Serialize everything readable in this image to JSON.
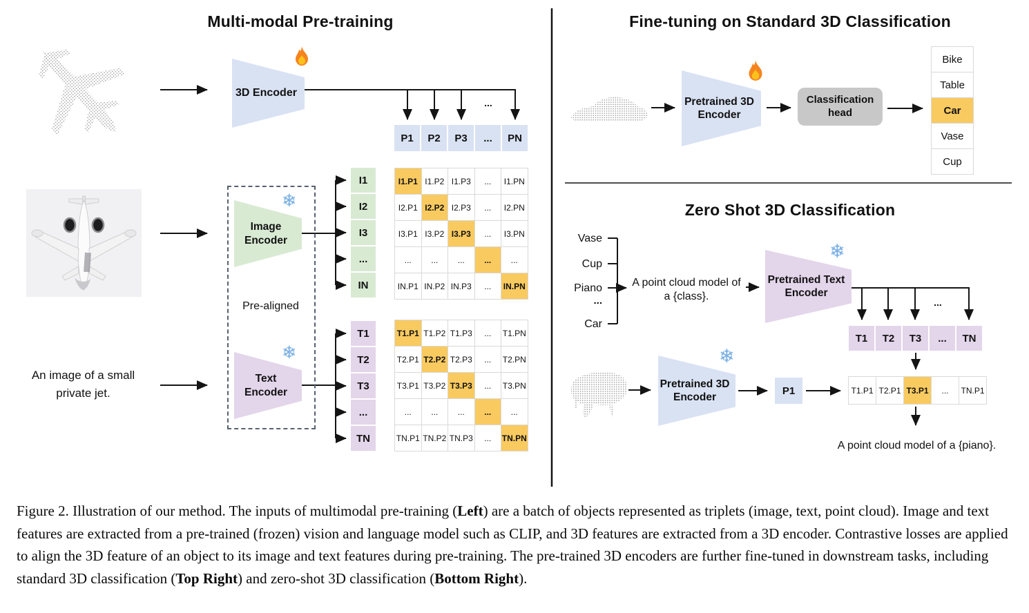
{
  "panels": {
    "pretraining": {
      "title": "Multi-modal Pre-training",
      "encoder3d_label": "3D Encoder",
      "image_encoder_label": "Image Encoder",
      "text_encoder_label": "Text Encoder",
      "prealigned_label": "Pre-aligned",
      "image_caption": "An image of a small private jet.",
      "dots_label": "...",
      "p_row": [
        "P1",
        "P2",
        "P3",
        "...",
        "PN"
      ],
      "i_col": [
        "I1",
        "I2",
        "I3",
        "...",
        "IN"
      ],
      "t_col": [
        "T1",
        "T2",
        "T3",
        "...",
        "TN"
      ],
      "i_matrix": [
        [
          "I1.P1",
          "I1.P2",
          "I1.P3",
          "...",
          "I1.PN"
        ],
        [
          "I2.P1",
          "I2.P2",
          "I2.P3",
          "...",
          "I2.PN"
        ],
        [
          "I3.P1",
          "I3.P2",
          "I3.P3",
          "...",
          "I3.PN"
        ],
        [
          "...",
          "...",
          "...",
          "...",
          "..."
        ],
        [
          "IN.P1",
          "IN.P2",
          "IN.P3",
          "...",
          "IN.PN"
        ]
      ],
      "t_matrix": [
        [
          "T1.P1",
          "T1.P2",
          "T1.P3",
          "...",
          "T1.PN"
        ],
        [
          "T2.P1",
          "T2.P2",
          "T2.P3",
          "...",
          "T2.PN"
        ],
        [
          "T3.P1",
          "T3.P2",
          "T3.P3",
          "...",
          "T3.PN"
        ],
        [
          "...",
          "...",
          "...",
          "...",
          "..."
        ],
        [
          "TN.P1",
          "TN.P2",
          "TN.P3",
          "...",
          "TN.PN"
        ]
      ]
    },
    "finetune": {
      "title": "Fine-tuning on Standard 3D Classification",
      "encoder_label": "Pretrained 3D Encoder",
      "head_label": "Classification head",
      "classes": [
        "Bike",
        "Table",
        "Car",
        "Vase",
        "Cup"
      ],
      "highlight_index": 2
    },
    "zeroshot": {
      "title": "Zero Shot 3D Classification",
      "classes": [
        "Vase",
        "Cup",
        "Piano",
        "...",
        "Car"
      ],
      "prompt": "A point cloud model of a {class}.",
      "prompt_line1": "A point cloud model of",
      "prompt_line2": "a {class}.",
      "text_encoder_label": "Pretrained Text Encoder",
      "encoder3d_label": "Pretrained 3D Encoder",
      "p1_label": "P1",
      "dots_label": "...",
      "t_row": [
        "T1",
        "T2",
        "T3",
        "...",
        "TN"
      ],
      "t_row_highlight_index": -1,
      "result_row": [
        "T1.P1",
        "T2.P1",
        "T3.P1",
        "...",
        "TN.P1"
      ],
      "result_highlight_index": 2,
      "result_caption": "A point cloud model of a {piano}."
    }
  },
  "icons": {
    "fire-icon": "flame",
    "snowflake_glyph": "❄"
  },
  "colors": {
    "highlight_orange": "#F9CA60",
    "encoder_blue": "#d9e2f3",
    "encoder_green": "#d9ead3",
    "encoder_purple": "#e3d5ea",
    "head_gray": "#c8c8c8",
    "grid_border": "#d9d9d9"
  },
  "caption_segments": [
    {
      "text": "Figure 2. Illustration of our method. The inputs of multimodal pre-training (",
      "bold": false
    },
    {
      "text": "Left",
      "bold": true
    },
    {
      "text": ") are a batch of objects represented as triplets (image, text, point cloud). Image and text features are extracted from a pre-trained (frozen) vision and language model such as CLIP, and 3D features are extracted from a 3D encoder. Contrastive losses are applied to align the 3D feature of an object to its image and text features during pre-training. The pre-trained 3D encoders are further fine-tuned in downstream tasks, including standard 3D classification (",
      "bold": false
    },
    {
      "text": "Top Right",
      "bold": true
    },
    {
      "text": ") and zero-shot 3D classification (",
      "bold": false
    },
    {
      "text": "Bottom Right",
      "bold": true
    },
    {
      "text": ").",
      "bold": false
    }
  ]
}
